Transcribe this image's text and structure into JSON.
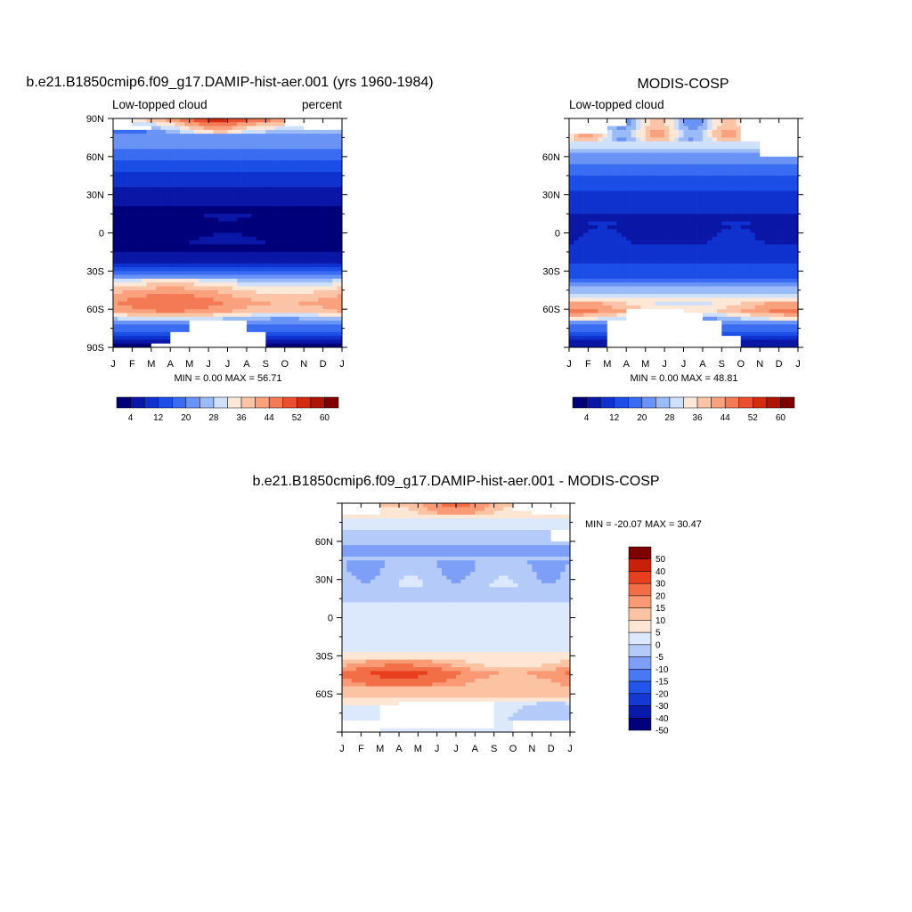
{
  "colors": {
    "panel_palette": [
      "#00007a",
      "#0a16a6",
      "#0f32cf",
      "#1a4ee6",
      "#3a6cf2",
      "#6a93f6",
      "#9bbaf8",
      "#cfe0fb",
      "#fde8d8",
      "#fcc4a6",
      "#f9a07c",
      "#f47a55",
      "#ec4f2d",
      "#d42a10",
      "#b01405",
      "#7e0000"
    ],
    "diff_palette": [
      "#00007a",
      "#0a1aa8",
      "#1438d2",
      "#2255ea",
      "#4a78f4",
      "#7d9ff7",
      "#b4cbf9",
      "#dce8fb",
      "#fde6d3",
      "#fcc3a3",
      "#f99a74",
      "#f26e47",
      "#e8401e",
      "#c9200a",
      "#7e0000"
    ],
    "missing": "#ffffff"
  },
  "chart_data": [
    {
      "type": "heatmap",
      "title": "b.e21.B1850cmip6.f09_g17.DAMIP-hist-aer.001 (yrs 1960-1984)",
      "subtitle_left": "Low-topped cloud",
      "subtitle_right": "percent",
      "x_tick_labels": [
        "J",
        "F",
        "M",
        "A",
        "M",
        "J",
        "J",
        "A",
        "S",
        "O",
        "N",
        "D",
        "J"
      ],
      "y_tick_labels": [
        "90N",
        "60N",
        "30N",
        "0",
        "30S",
        "60S",
        "90S"
      ],
      "y_ticks": [
        90,
        60,
        30,
        0,
        -30,
        -60,
        -90
      ],
      "ylim": [
        -90,
        90
      ],
      "stats_text": "MIN =   0.00 MAX =  56.71",
      "colorbar_labels": [
        "4",
        "12",
        "20",
        "28",
        "36",
        "44",
        "52",
        "60"
      ],
      "levels": [
        4,
        8,
        12,
        16,
        20,
        24,
        28,
        32,
        36,
        40,
        44,
        48,
        52,
        56,
        60
      ],
      "profile_lat": [
        -90,
        -80,
        -70,
        -62,
        -55,
        -45,
        -38,
        -32,
        -25,
        -15,
        -5,
        5,
        15,
        25,
        35,
        45,
        55,
        62,
        70,
        78,
        84,
        90
      ],
      "profile_val": [
        0,
        14,
        22,
        40,
        44,
        38,
        30,
        18,
        8,
        4,
        3,
        2,
        3,
        5,
        8,
        11,
        14,
        18,
        22,
        24,
        34,
        46
      ],
      "missing_regions": [
        {
          "lat": [
            -90,
            -86
          ],
          "months": [
            2,
            8
          ]
        },
        {
          "lat": [
            -86,
            -78
          ],
          "months": [
            3,
            8
          ]
        },
        {
          "lat": [
            -78,
            -70
          ],
          "months": [
            4,
            7
          ]
        },
        {
          "lat": [
            82,
            90
          ],
          "months": [
            0,
            1
          ]
        },
        {
          "lat": [
            80,
            84
          ],
          "months": [
            1,
            2
          ]
        },
        {
          "lat": [
            80,
            90
          ],
          "months": [
            10,
            12
          ]
        },
        {
          "lat": [
            84,
            90
          ],
          "months": [
            9,
            10
          ]
        }
      ]
    },
    {
      "type": "heatmap",
      "title": "MODIS-COSP",
      "subtitle_left": "Low-topped cloud",
      "subtitle_right": "",
      "x_tick_labels": [
        "J",
        "F",
        "M",
        "A",
        "M",
        "J",
        "J",
        "A",
        "S",
        "O",
        "N",
        "D",
        "J"
      ],
      "y_tick_labels": [
        "60N",
        "30N",
        "0",
        "30S",
        "60S"
      ],
      "y_ticks": [
        60,
        30,
        0,
        -30,
        -60
      ],
      "ylim": [
        -90,
        90
      ],
      "stats_text": "MIN =   0.00 MAX =  48.81",
      "colorbar_labels": [
        "4",
        "12",
        "20",
        "28",
        "36",
        "44",
        "52",
        "60"
      ],
      "levels": [
        4,
        8,
        12,
        16,
        20,
        24,
        28,
        32,
        36,
        40,
        44,
        48,
        52,
        56,
        60
      ],
      "profile_lat": [
        -90,
        -80,
        -70,
        -62,
        -55,
        -45,
        -35,
        -25,
        -15,
        -5,
        5,
        15,
        25,
        35,
        45,
        55,
        62,
        70,
        78,
        85,
        90
      ],
      "profile_val": [
        3,
        14,
        22,
        40,
        36,
        26,
        16,
        12,
        9,
        7,
        6,
        8,
        10,
        13,
        16,
        20,
        24,
        30,
        34,
        30,
        30
      ],
      "missing_regions": [
        {
          "lat": [
            -90,
            -70
          ],
          "months": [
            2,
            8
          ]
        },
        {
          "lat": [
            -90,
            -80
          ],
          "months": [
            8,
            9
          ]
        },
        {
          "lat": [
            -70,
            -60
          ],
          "months": [
            3,
            6
          ]
        },
        {
          "lat": [
            -72,
            -62
          ],
          "months": [
            4,
            7
          ]
        },
        {
          "lat": [
            60,
            90
          ],
          "months": [
            10,
            12
          ]
        },
        {
          "lat": [
            72,
            90
          ],
          "months": [
            9,
            10
          ]
        },
        {
          "lat": [
            78,
            90
          ],
          "months": [
            0,
            2
          ]
        },
        {
          "lat": [
            84,
            90
          ],
          "months": [
            2,
            3
          ]
        }
      ]
    },
    {
      "type": "heatmap",
      "title": "b.e21.B1850cmip6.f09_g17.DAMIP-hist-aer.001 - MODIS-COSP",
      "subtitle_left": "",
      "subtitle_right": "",
      "x_tick_labels": [
        "J",
        "F",
        "M",
        "A",
        "M",
        "J",
        "J",
        "A",
        "S",
        "O",
        "N",
        "D",
        "J"
      ],
      "y_tick_labels": [
        "60N",
        "30N",
        "0",
        "30S",
        "60S"
      ],
      "y_ticks": [
        60,
        30,
        0,
        -30,
        -60
      ],
      "ylim": [
        -90,
        90
      ],
      "stats_text": "MIN = -20.07 MAX =  30.47",
      "colorbar_labels": [
        "50",
        "40",
        "30",
        "20",
        "15",
        "10",
        "5",
        "0",
        "-5",
        "-10",
        "-15",
        "-20",
        "-30",
        "-40",
        "-50"
      ],
      "levels": [
        -50,
        -40,
        -30,
        -20,
        -15,
        -10,
        -5,
        0,
        5,
        10,
        15,
        20,
        30,
        40,
        50
      ],
      "profile_lat": [
        -90,
        -80,
        -70,
        -62,
        -52,
        -44,
        -38,
        -30,
        -20,
        -5,
        5,
        20,
        40,
        55,
        65,
        75,
        82,
        90
      ],
      "profile_val": [
        0,
        -4,
        -2,
        5,
        12,
        16,
        10,
        2,
        -3,
        -5,
        -4,
        -6,
        -9,
        -11,
        -6,
        -3,
        8,
        14
      ],
      "missing_regions": [
        {
          "lat": [
            -90,
            -80
          ],
          "months": [
            0,
            2
          ]
        },
        {
          "lat": [
            -90,
            -80
          ],
          "months": [
            9,
            12
          ]
        },
        {
          "lat": [
            -86,
            -70
          ],
          "months": [
            2,
            8
          ]
        },
        {
          "lat": [
            -74,
            -66
          ],
          "months": [
            3,
            8
          ]
        },
        {
          "lat": [
            82,
            90
          ],
          "months": [
            0,
            2
          ]
        },
        {
          "lat": [
            80,
            90
          ],
          "months": [
            10,
            12
          ]
        },
        {
          "lat": [
            84,
            90
          ],
          "months": [
            9,
            10
          ]
        },
        {
          "lat": [
            60,
            68
          ],
          "months": [
            11,
            12
          ]
        }
      ]
    }
  ]
}
